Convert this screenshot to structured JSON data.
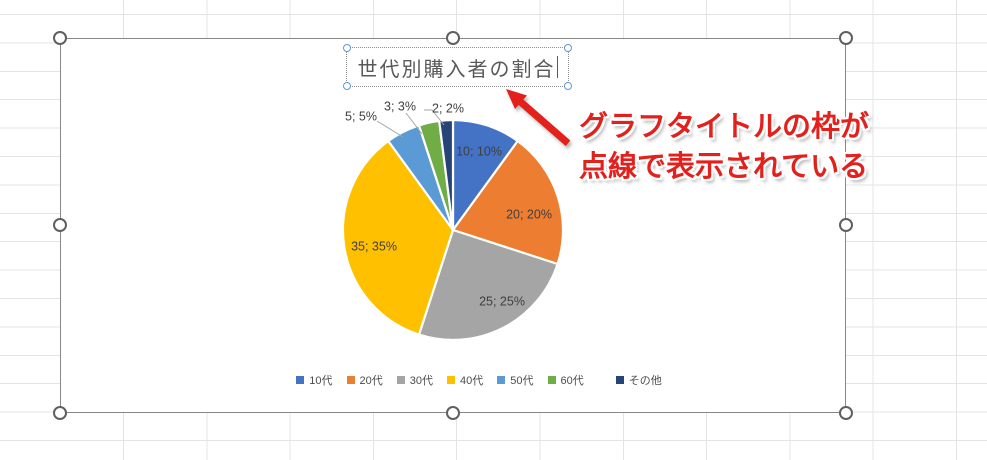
{
  "chart_data": {
    "type": "pie",
    "title": "世代別購入者の割合",
    "categories": [
      "10代",
      "20代",
      "30代",
      "40代",
      "50代",
      "60代",
      "その他"
    ],
    "values": [
      10,
      20,
      25,
      35,
      5,
      3,
      2
    ],
    "data_labels": [
      "10; 10%",
      "20; 20%",
      "25; 25%",
      "35; 35%",
      "5; 5%",
      "3; 3%",
      "2; 2%"
    ],
    "colors": [
      "#4472c4",
      "#ed7d31",
      "#a5a5a5",
      "#ffc000",
      "#5b9bd5",
      "#70ad47",
      "#264478"
    ],
    "legend_position": "bottom",
    "start_angle_deg": 0,
    "direction": "clockwise",
    "label_color": "#3f3f3f",
    "leader_line_color": "#a6a6a6"
  },
  "title_editor": {
    "text": "世代別購入者の割合",
    "cursor_visible": true
  },
  "annotation": {
    "line1": "グラフタイトルの枠が",
    "line2": "点線で表示されている",
    "color": "#e3201c"
  },
  "selection": {
    "chart_selected": true,
    "title_box_selected": true
  }
}
